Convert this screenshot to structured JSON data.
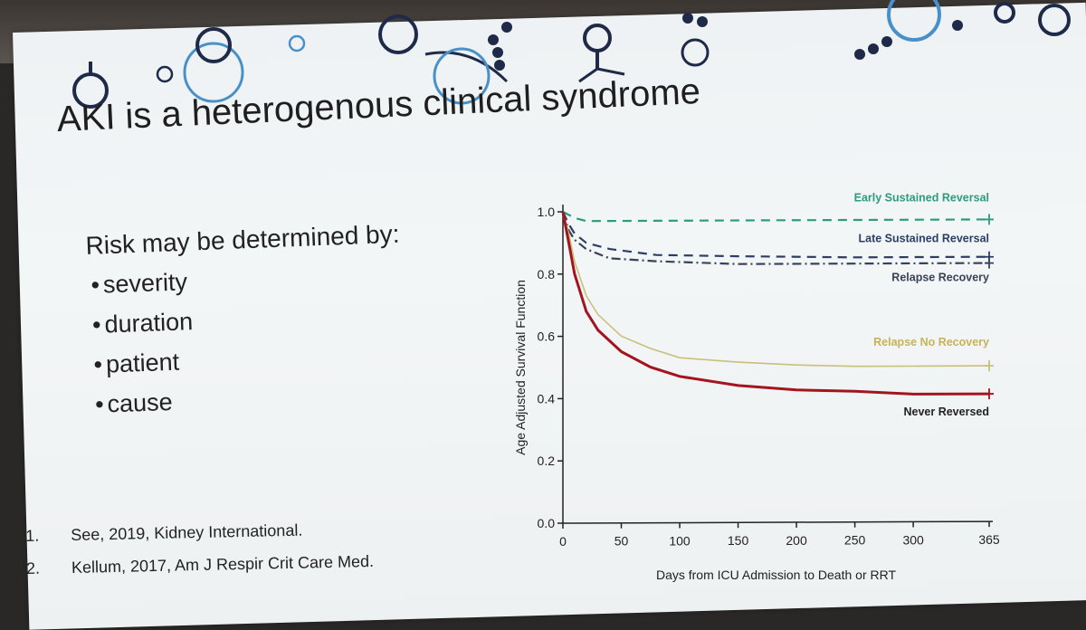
{
  "slide": {
    "title": "AKI is a heterogenous clinical syndrome",
    "risk_heading": "Risk may be determined by:",
    "bullets": [
      "severity",
      "duration",
      "patient",
      "cause"
    ],
    "references": [
      {
        "num": "1.",
        "text": "See, 2019, Kidney International."
      },
      {
        "num": "2.",
        "text": "Kellum, 2017, Am J Respir Crit Care Med."
      }
    ]
  },
  "chart_data": {
    "type": "line",
    "title": "",
    "xlabel": "Days from ICU Admission to Death or RRT",
    "ylabel": "Age Adjusted Survival Function",
    "xlim": [
      0,
      365
    ],
    "ylim": [
      0,
      1.0
    ],
    "x_ticks": [
      0,
      50,
      100,
      150,
      200,
      250,
      300,
      365
    ],
    "y_ticks": [
      0.0,
      0.2,
      0.4,
      0.6,
      0.8,
      1.0
    ],
    "y_tick_labels": [
      "0.0",
      "0.2",
      "0.4",
      "0.6",
      "0.8",
      "1.0"
    ],
    "legend_placement": "right end of each line",
    "series": [
      {
        "name": "Early Sustained Reversal",
        "color": "#2e9a7e",
        "style": "dashed",
        "x": [
          0,
          5,
          10,
          20,
          40,
          80,
          150,
          250,
          365
        ],
        "y": [
          1.0,
          0.99,
          0.98,
          0.97,
          0.97,
          0.97,
          0.97,
          0.97,
          0.97
        ]
      },
      {
        "name": "Late Sustained Reversal",
        "color": "#2c3e66",
        "style": "dashed",
        "x": [
          0,
          5,
          10,
          20,
          40,
          80,
          150,
          250,
          365
        ],
        "y": [
          1.0,
          0.96,
          0.93,
          0.9,
          0.88,
          0.86,
          0.855,
          0.85,
          0.85
        ]
      },
      {
        "name": "Relapse Recovery",
        "color": "#3a4258",
        "style": "dashdot",
        "x": [
          0,
          5,
          10,
          20,
          40,
          80,
          150,
          250,
          365
        ],
        "y": [
          1.0,
          0.94,
          0.91,
          0.88,
          0.85,
          0.84,
          0.83,
          0.83,
          0.83
        ]
      },
      {
        "name": "Relapse No Recovery",
        "color": "#c9c07a",
        "style": "solid",
        "x": [
          0,
          5,
          10,
          20,
          30,
          50,
          75,
          100,
          150,
          200,
          250,
          300,
          365
        ],
        "y": [
          1.0,
          0.93,
          0.84,
          0.73,
          0.67,
          0.6,
          0.56,
          0.53,
          0.515,
          0.505,
          0.5,
          0.5,
          0.5
        ]
      },
      {
        "name": "Never Reversed",
        "color": "#a3141f",
        "style": "solid",
        "x": [
          0,
          5,
          10,
          20,
          30,
          50,
          75,
          100,
          150,
          200,
          250,
          300,
          365
        ],
        "y": [
          1.0,
          0.9,
          0.8,
          0.68,
          0.62,
          0.55,
          0.5,
          0.47,
          0.44,
          0.425,
          0.42,
          0.41,
          0.41
        ]
      }
    ]
  }
}
